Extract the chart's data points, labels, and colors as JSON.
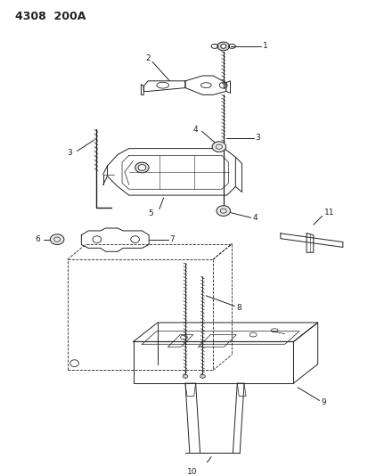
{
  "title": "4308  200A",
  "bg": "#ffffff",
  "lc": "#222222",
  "figsize": [
    4.14,
    5.33
  ],
  "dpi": 100
}
